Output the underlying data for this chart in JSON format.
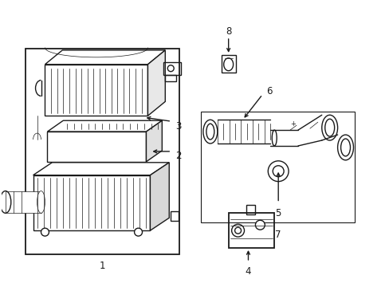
{
  "background_color": "#ffffff",
  "line_color": "#1a1a1a",
  "fig_width": 4.89,
  "fig_height": 3.6,
  "dpi": 100,
  "label_fontsize": 8.5,
  "lw_main": 1.0,
  "lw_thin": 0.5,
  "lw_thick": 1.3
}
